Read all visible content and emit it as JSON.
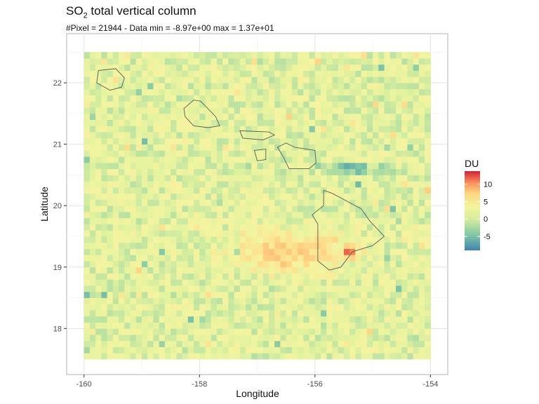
{
  "chart_data": {
    "type": "heatmap",
    "title_main": "SO",
    "title_sub": "2",
    "title_rest": " total vertical column",
    "subtitle": "#Pixel = 21944 - Data min = -8.97e+00 max = 1.37e+01",
    "xlabel": "Longitude",
    "ylabel": "Latitude",
    "xlim": [
      -160.3,
      -153.7
    ],
    "ylim": [
      17.25,
      22.8
    ],
    "x_ticks": [
      -160,
      -158,
      -156,
      -154
    ],
    "x_tick_labels": [
      "-160",
      "-158",
      "-156",
      "-154"
    ],
    "y_ticks": [
      18,
      19,
      20,
      21,
      22
    ],
    "y_tick_labels": [
      "18",
      "19",
      "20",
      "21",
      "22"
    ],
    "grid": true,
    "legend": {
      "title": "DU",
      "position": "right",
      "range": [
        -9,
        13.7
      ],
      "ticks": [
        10,
        5,
        0,
        -5
      ],
      "tick_labels": [
        "10",
        "5",
        "0",
        "-5"
      ]
    },
    "data_summary": {
      "pixel_count": 21944,
      "min": -8.97,
      "max": 13.7
    },
    "swath": {
      "lon_range": [
        -160.0,
        -154.0
      ],
      "lat_range": [
        17.5,
        22.5
      ]
    },
    "hotspots": [
      {
        "lon": -155.45,
        "lat": 19.2,
        "value": 12,
        "kind": "high"
      },
      {
        "lon": -156.5,
        "lat": 19.2,
        "value": 6,
        "kind": "plume"
      },
      {
        "lon": -155.5,
        "lat": 20.55,
        "value": -7,
        "kind": "low"
      }
    ],
    "islands": [
      {
        "name": "Kauai",
        "lonlat": [
          [
            -159.75,
            22.2
          ],
          [
            -159.45,
            22.23
          ],
          [
            -159.3,
            22.08
          ],
          [
            -159.35,
            21.93
          ],
          [
            -159.55,
            21.88
          ],
          [
            -159.78,
            22.0
          ]
        ]
      },
      {
        "name": "Oahu",
        "lonlat": [
          [
            -158.27,
            21.58
          ],
          [
            -158.1,
            21.72
          ],
          [
            -157.98,
            21.7
          ],
          [
            -157.72,
            21.45
          ],
          [
            -157.65,
            21.3
          ],
          [
            -157.85,
            21.27
          ],
          [
            -158.1,
            21.3
          ],
          [
            -158.25,
            21.45
          ]
        ]
      },
      {
        "name": "Molokai",
        "lonlat": [
          [
            -157.3,
            21.22
          ],
          [
            -157.25,
            21.1
          ],
          [
            -156.9,
            21.07
          ],
          [
            -156.7,
            21.15
          ],
          [
            -156.8,
            21.2
          ]
        ]
      },
      {
        "name": "Lanai",
        "lonlat": [
          [
            -157.05,
            20.9
          ],
          [
            -156.85,
            20.92
          ],
          [
            -156.85,
            20.75
          ],
          [
            -157.0,
            20.73
          ]
        ]
      },
      {
        "name": "Maui",
        "lonlat": [
          [
            -156.65,
            20.95
          ],
          [
            -156.5,
            21.02
          ],
          [
            -156.35,
            20.95
          ],
          [
            -156.0,
            20.9
          ],
          [
            -155.98,
            20.7
          ],
          [
            -156.1,
            20.6
          ],
          [
            -156.45,
            20.6
          ],
          [
            -156.55,
            20.8
          ]
        ]
      },
      {
        "name": "Hawaii",
        "lonlat": [
          [
            -155.85,
            20.25
          ],
          [
            -155.7,
            20.2
          ],
          [
            -155.2,
            19.95
          ],
          [
            -155.05,
            19.75
          ],
          [
            -154.8,
            19.5
          ],
          [
            -155.0,
            19.35
          ],
          [
            -155.35,
            19.25
          ],
          [
            -155.55,
            19.0
          ],
          [
            -155.75,
            18.95
          ],
          [
            -155.95,
            19.1
          ],
          [
            -155.95,
            19.7
          ],
          [
            -156.05,
            19.85
          ],
          [
            -155.85,
            20.0
          ]
        ]
      }
    ]
  }
}
